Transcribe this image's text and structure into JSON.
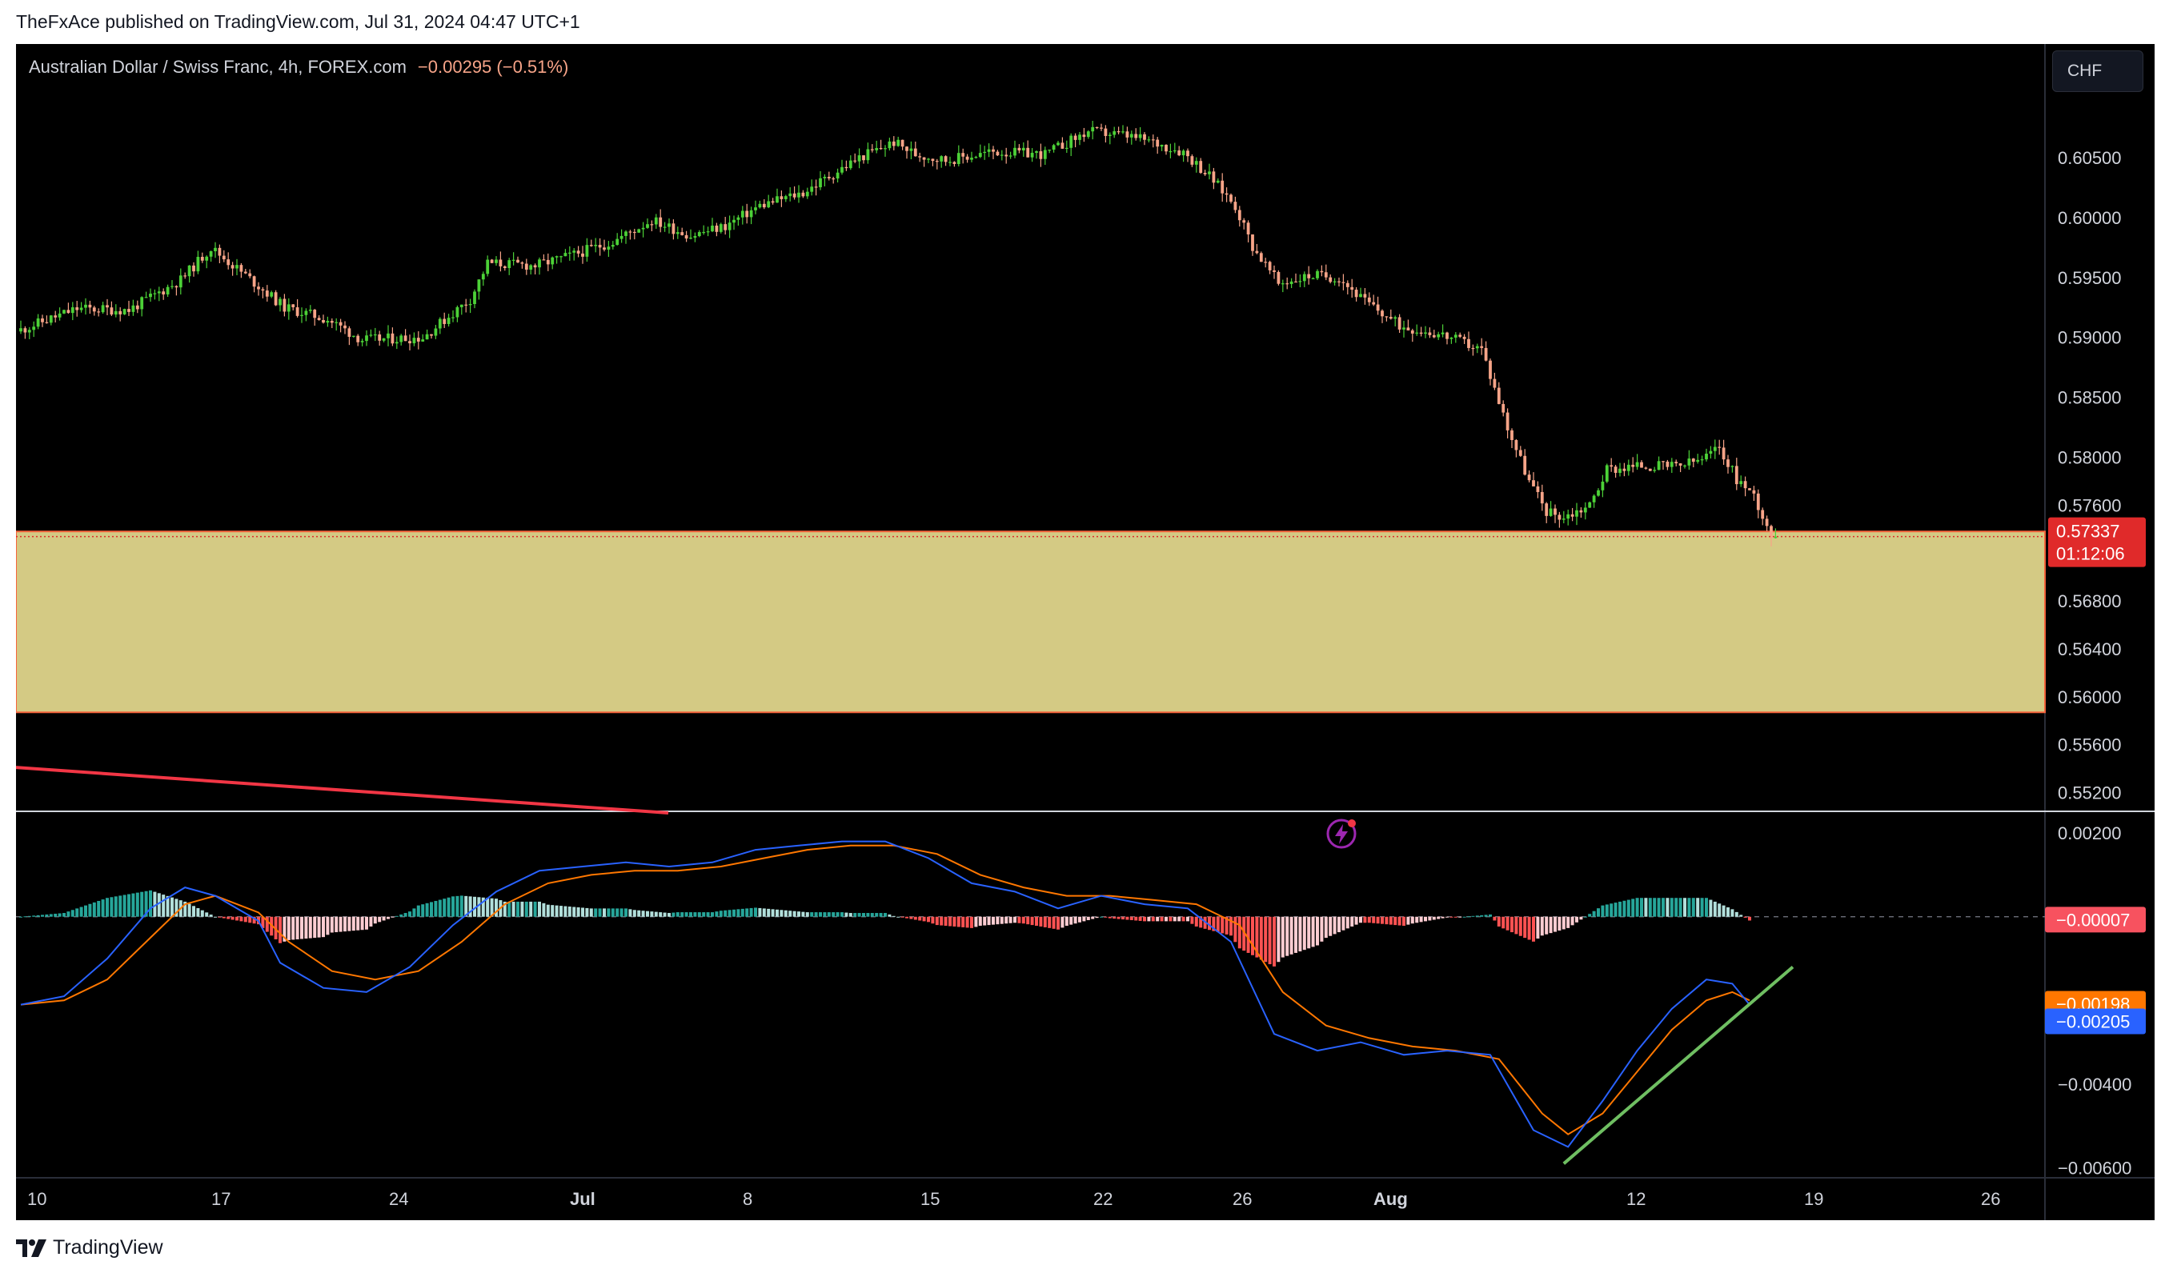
{
  "publisher": "TheFxAce published on TradingView.com, Jul 31, 2024 04:47 UTC+1",
  "legend": {
    "symbol": "Australian Dollar / Swiss Franc, 4h, FOREX.com",
    "change": "−0.00295 (−0.51%)"
  },
  "currency_button": "CHF",
  "footer": {
    "brand": "TradingView"
  },
  "colors": {
    "background": "#000000",
    "up_candle": "#4cd137",
    "down_candle": "#f7a488",
    "zone": "#d4ca84",
    "zone_border": "#f5643c",
    "trendline_red": "#f23645",
    "macd_line": "#2962ff",
    "signal_line": "#ff7700",
    "trendline_green": "#6fbf62",
    "hist_up_strong": "#26a69a",
    "hist_up_weak": "#b2dfdb",
    "hist_down_strong": "#ff5252",
    "hist_down_weak": "#ffcdd2",
    "price_badge": "#e02a2a"
  },
  "chart_data": {
    "type": "candlestick",
    "timeframe": "4h",
    "price_axis": {
      "ticks": [
        "0.60500",
        "0.60000",
        "0.59500",
        "0.59000",
        "0.58500",
        "0.58000",
        "0.57600",
        "0.56800",
        "0.56400",
        "0.56000",
        "0.55600",
        "0.55200"
      ],
      "tick_values": [
        0.605,
        0.6,
        0.595,
        0.59,
        0.585,
        0.58,
        0.576,
        0.568,
        0.564,
        0.56,
        0.556,
        0.552
      ],
      "range": [
        0.5505,
        0.6145
      ],
      "current_price": "0.57337",
      "current_price_value": 0.57337,
      "countdown": "01:12:06"
    },
    "date_axis": {
      "labels": [
        "10",
        "17",
        "24",
        "Jul",
        "8",
        "15",
        "22",
        "26",
        "Aug",
        "12",
        "19",
        "26"
      ]
    },
    "support_zone": {
      "top": 0.5738,
      "bottom": 0.5587
    },
    "trendline_red": {
      "from_price": 0.5541,
      "to_price": 0.5503,
      "from_date": "Jun 10",
      "to_date": "Jul 4"
    },
    "price_path": [
      [
        0,
        0.5905
      ],
      [
        14,
        0.5924
      ],
      [
        26,
        0.5923
      ],
      [
        38,
        0.5948
      ],
      [
        45,
        0.5975
      ],
      [
        56,
        0.5943
      ],
      [
        62,
        0.5925
      ],
      [
        72,
        0.5915
      ],
      [
        80,
        0.5898
      ],
      [
        94,
        0.59
      ],
      [
        105,
        0.5932
      ],
      [
        109,
        0.5962
      ],
      [
        120,
        0.596
      ],
      [
        128,
        0.5968
      ],
      [
        138,
        0.598
      ],
      [
        147,
        0.5998
      ],
      [
        156,
        0.5985
      ],
      [
        164,
        0.5993
      ],
      [
        172,
        0.601
      ],
      [
        182,
        0.6021
      ],
      [
        195,
        0.605
      ],
      [
        203,
        0.6063
      ],
      [
        208,
        0.6053
      ],
      [
        215,
        0.6048
      ],
      [
        226,
        0.6055
      ],
      [
        238,
        0.6053
      ],
      [
        248,
        0.6072
      ],
      [
        256,
        0.6069
      ],
      [
        262,
        0.6064
      ],
      [
        270,
        0.6055
      ],
      [
        276,
        0.6035
      ],
      [
        282,
        0.601
      ],
      [
        286,
        0.5976
      ],
      [
        292,
        0.5945
      ],
      [
        300,
        0.5952
      ],
      [
        306,
        0.595
      ],
      [
        312,
        0.593
      ],
      [
        320,
        0.591
      ],
      [
        330,
        0.5902
      ],
      [
        339,
        0.589
      ],
      [
        345,
        0.5825
      ],
      [
        350,
        0.578
      ],
      [
        354,
        0.5755
      ],
      [
        358,
        0.575
      ],
      [
        364,
        0.576
      ],
      [
        368,
        0.579
      ],
      [
        376,
        0.5793
      ],
      [
        384,
        0.5792
      ],
      [
        390,
        0.5798
      ],
      [
        394,
        0.5808
      ],
      [
        398,
        0.5782
      ],
      [
        402,
        0.5768
      ],
      [
        406,
        0.5735
      ]
    ],
    "macd": {
      "axis_ticks": [
        "0.00200",
        "−0.00400",
        "−0.00600"
      ],
      "axis_tick_values": [
        0.002,
        -0.004,
        -0.006
      ],
      "range": [
        -0.0062,
        0.0025
      ],
      "histogram_value": "−0.00007",
      "histogram_value_num": -7e-05,
      "signal_value": "−0.00198",
      "signal_value_num": -0.00198,
      "macd_value": "−0.00205",
      "macd_value_num": -0.00205,
      "macd_line": [
        [
          0,
          -0.0021
        ],
        [
          10,
          -0.0019
        ],
        [
          20,
          -0.001
        ],
        [
          30,
          0.0002
        ],
        [
          38,
          0.0007
        ],
        [
          45,
          0.0005
        ],
        [
          55,
          -0.0001
        ],
        [
          60,
          -0.0011
        ],
        [
          70,
          -0.0017
        ],
        [
          80,
          -0.0018
        ],
        [
          90,
          -0.0012
        ],
        [
          100,
          -0.0002
        ],
        [
          110,
          0.0006
        ],
        [
          120,
          0.0011
        ],
        [
          130,
          0.0012
        ],
        [
          140,
          0.0013
        ],
        [
          150,
          0.0012
        ],
        [
          160,
          0.0013
        ],
        [
          170,
          0.0016
        ],
        [
          180,
          0.0017
        ],
        [
          190,
          0.0018
        ],
        [
          200,
          0.0018
        ],
        [
          210,
          0.0014
        ],
        [
          220,
          0.0008
        ],
        [
          230,
          0.0006
        ],
        [
          240,
          0.0002
        ],
        [
          250,
          0.0005
        ],
        [
          260,
          0.0003
        ],
        [
          270,
          0.0002
        ],
        [
          280,
          -0.0006
        ],
        [
          290,
          -0.0028
        ],
        [
          300,
          -0.0032
        ],
        [
          310,
          -0.003
        ],
        [
          320,
          -0.0033
        ],
        [
          330,
          -0.0032
        ],
        [
          340,
          -0.0033
        ],
        [
          350,
          -0.0051
        ],
        [
          358,
          -0.0055
        ],
        [
          366,
          -0.0044
        ],
        [
          374,
          -0.0032
        ],
        [
          382,
          -0.0022
        ],
        [
          390,
          -0.0015
        ],
        [
          396,
          -0.0016
        ],
        [
          400,
          -0.0021
        ]
      ],
      "signal_line": [
        [
          0,
          -0.0021
        ],
        [
          10,
          -0.002
        ],
        [
          20,
          -0.0015
        ],
        [
          30,
          -0.0005
        ],
        [
          38,
          0.0003
        ],
        [
          45,
          0.0005
        ],
        [
          55,
          0.0001
        ],
        [
          62,
          -0.0006
        ],
        [
          72,
          -0.0013
        ],
        [
          82,
          -0.0015
        ],
        [
          92,
          -0.0013
        ],
        [
          102,
          -0.0006
        ],
        [
          112,
          0.0003
        ],
        [
          122,
          0.0008
        ],
        [
          132,
          0.001
        ],
        [
          142,
          0.0011
        ],
        [
          152,
          0.0011
        ],
        [
          162,
          0.0012
        ],
        [
          172,
          0.0014
        ],
        [
          182,
          0.0016
        ],
        [
          192,
          0.0017
        ],
        [
          202,
          0.0017
        ],
        [
          212,
          0.0015
        ],
        [
          222,
          0.001
        ],
        [
          232,
          0.0007
        ],
        [
          242,
          0.0005
        ],
        [
          252,
          0.0005
        ],
        [
          262,
          0.0004
        ],
        [
          272,
          0.0003
        ],
        [
          282,
          -0.0002
        ],
        [
          292,
          -0.0018
        ],
        [
          302,
          -0.0026
        ],
        [
          312,
          -0.0029
        ],
        [
          322,
          -0.0031
        ],
        [
          332,
          -0.0032
        ],
        [
          342,
          -0.0034
        ],
        [
          352,
          -0.0047
        ],
        [
          358,
          -0.0052
        ],
        [
          366,
          -0.0047
        ],
        [
          374,
          -0.0037
        ],
        [
          382,
          -0.0027
        ],
        [
          390,
          -0.002
        ],
        [
          396,
          -0.0018
        ],
        [
          400,
          -0.002
        ]
      ],
      "trendline_green": [
        [
          357,
          -0.0059
        ],
        [
          410,
          -0.0012
        ]
      ]
    }
  }
}
